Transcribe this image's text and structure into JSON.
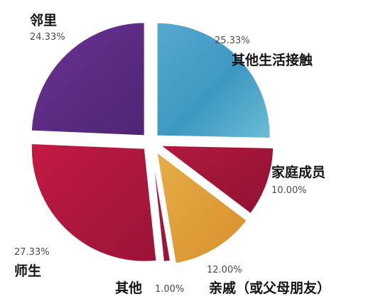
{
  "chart_data": {
    "type": "pie",
    "title": "",
    "legend": "none",
    "slices": [
      {
        "label": "其他生活接触",
        "value": 25.33,
        "value_label": "25.33%",
        "color": "#3f9cc4"
      },
      {
        "label": "家庭成员",
        "value": 10.0,
        "value_label": "10.00%",
        "color": "#a5163a"
      },
      {
        "label": "亲戚（或父母朋友）",
        "value": 12.0,
        "value_label": "12.00%",
        "color": "#e2a23b"
      },
      {
        "label": "其他",
        "value": 1.0,
        "value_label": "1.00%",
        "color": "#a8203c"
      },
      {
        "label": "师生",
        "value": 27.33,
        "value_label": "27.33%",
        "color": "#b8163d"
      },
      {
        "label": "邻里",
        "value": 24.33,
        "value_label": "24.33%",
        "color": "#5e2d86"
      }
    ]
  }
}
